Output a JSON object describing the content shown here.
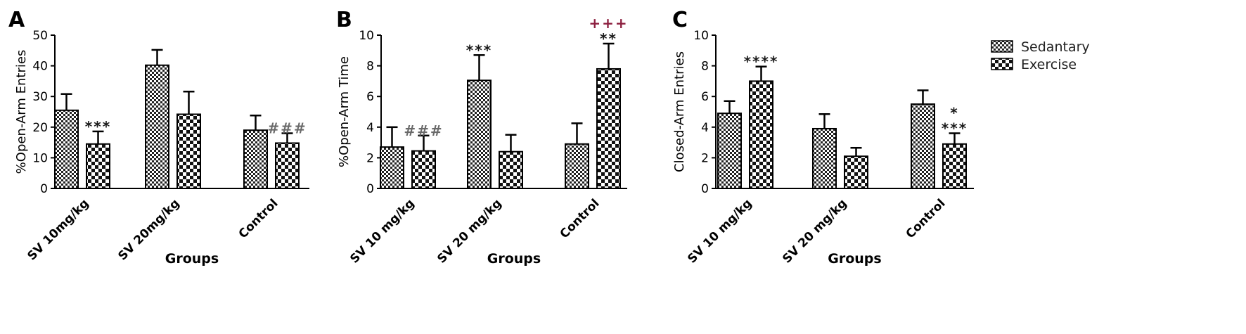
{
  "colors": {
    "asterisk": "#1a1a1a",
    "hash": "#6a6a6a",
    "plus": "#8c1f3f",
    "bar_stroke": "#000000"
  },
  "legend": {
    "position": "top-right",
    "items": [
      {
        "label": "Sedantary",
        "pattern": "fine-checker"
      },
      {
        "label": "Exercise",
        "pattern": "coarse-checker"
      }
    ]
  },
  "chart_data": [
    {
      "type": "bar",
      "panel_letter": "A",
      "categories": [
        "SV 10mg/kg",
        "SV 20mg/kg",
        "Control"
      ],
      "ylabel": "%Open-Arm Entries",
      "xlabel": "Groups",
      "ylim": [
        0,
        50
      ],
      "yticks": [
        0,
        10,
        20,
        30,
        40,
        50
      ],
      "series": [
        {
          "name": "Sedantary",
          "values": [
            25.5,
            40.2,
            19
          ],
          "errors": [
            5.3,
            5,
            4.8
          ]
        },
        {
          "name": "Exercise",
          "values": [
            14.5,
            24.2,
            14.8
          ],
          "errors": [
            4.1,
            7.4,
            3.2
          ]
        }
      ],
      "annotations": [
        {
          "series": 1,
          "category": 0,
          "lines": [
            {
              "text": "***",
              "kind": "asterisk"
            }
          ]
        },
        {
          "series": 1,
          "category": 2,
          "lines": [
            {
              "text": "###",
              "kind": "hash"
            }
          ]
        }
      ]
    },
    {
      "type": "bar",
      "panel_letter": "B",
      "categories": [
        "SV 10 mg/kg",
        "SV 20 mg/kg",
        "Control"
      ],
      "ylabel": "%Open-Arm Time",
      "xlabel": "Groups",
      "ylim": [
        0,
        10
      ],
      "yticks": [
        0,
        2,
        4,
        6,
        8,
        10
      ],
      "series": [
        {
          "name": "Sedantary",
          "values": [
            2.7,
            7.05,
            2.9
          ],
          "errors": [
            1.3,
            1.65,
            1.35
          ]
        },
        {
          "name": "Exercise",
          "values": [
            2.45,
            2.4,
            7.8
          ],
          "errors": [
            1,
            1.1,
            1.65
          ]
        }
      ],
      "annotations": [
        {
          "series": 1,
          "category": 0,
          "lines": [
            {
              "text": "###",
              "kind": "hash"
            }
          ]
        },
        {
          "series": 0,
          "category": 1,
          "lines": [
            {
              "text": "***",
              "kind": "asterisk"
            }
          ]
        },
        {
          "series": 1,
          "category": 2,
          "lines": [
            {
              "text": "+++",
              "kind": "plus"
            },
            {
              "text": "**",
              "kind": "asterisk"
            }
          ]
        }
      ]
    },
    {
      "type": "bar",
      "panel_letter": "C",
      "categories": [
        "SV 10 mg/kg",
        "SV 20 mg/kg",
        "Control"
      ],
      "ylabel": "Closed-Arm Entries",
      "xlabel": "Groups",
      "ylim": [
        0,
        10
      ],
      "yticks": [
        0,
        2,
        4,
        6,
        8,
        10
      ],
      "series": [
        {
          "name": "Sedantary",
          "values": [
            4.9,
            3.9,
            5.5
          ],
          "errors": [
            0.8,
            0.95,
            0.9
          ]
        },
        {
          "name": "Exercise",
          "values": [
            7,
            2.1,
            2.9
          ],
          "errors": [
            0.95,
            0.55,
            0.7
          ]
        }
      ],
      "annotations": [
        {
          "series": 1,
          "category": 0,
          "lines": [
            {
              "text": "****",
              "kind": "asterisk"
            }
          ]
        },
        {
          "series": 1,
          "category": 2,
          "lines": [
            {
              "text": "*",
              "kind": "asterisk"
            },
            {
              "text": "***",
              "kind": "asterisk"
            }
          ]
        }
      ]
    }
  ]
}
